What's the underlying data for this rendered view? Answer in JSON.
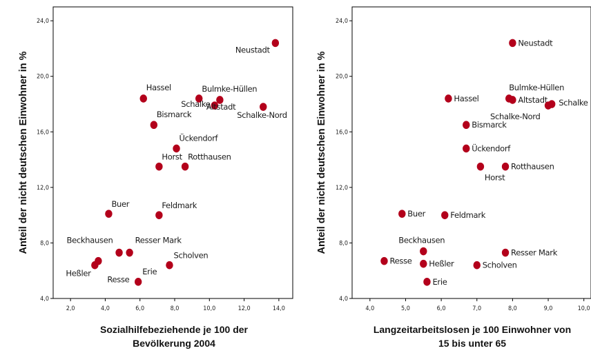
{
  "chart_data": [
    {
      "type": "scatter",
      "xlabel": "Sozialhilfebeziehende je 100 der Bevölkerung 2004",
      "xlabel_lines": [
        "Sozialhilfebeziehende je 100 der",
        "Bevölkerung 2004"
      ],
      "ylabel": "Anteil der nicht deutschen Einwohner in %",
      "xlim": [
        1.0,
        14.8
      ],
      "ylim": [
        4.0,
        25.0
      ],
      "x_ticks": [
        "2,0",
        "4,0",
        "6,0",
        "8,0",
        "10,0",
        "12,0",
        "14,0"
      ],
      "y_ticks": [
        "4,0",
        "8,0",
        "12,0",
        "16,0",
        "20,0",
        "24,0"
      ],
      "grid": false,
      "points": [
        {
          "label": "Neustadt",
          "x": 13.8,
          "y": 22.4
        },
        {
          "label": "Hassel",
          "x": 6.2,
          "y": 18.4
        },
        {
          "label": "Bulmke-Hüllen",
          "x": 10.6,
          "y": 18.3
        },
        {
          "label": "Schalke",
          "x": 9.4,
          "y": 18.4
        },
        {
          "label": "Altstadt",
          "x": 10.3,
          "y": 17.9
        },
        {
          "label": "Schalke-Nord",
          "x": 13.1,
          "y": 17.8
        },
        {
          "label": "Bismarck",
          "x": 6.8,
          "y": 16.5
        },
        {
          "label": "Ückendorf",
          "x": 8.1,
          "y": 14.8
        },
        {
          "label": "Horst",
          "x": 7.1,
          "y": 13.5
        },
        {
          "label": "Rotthausen",
          "x": 8.6,
          "y": 13.5
        },
        {
          "label": "Buer",
          "x": 4.2,
          "y": 10.1
        },
        {
          "label": "Feldmark",
          "x": 7.1,
          "y": 10.0
        },
        {
          "label": "Beckhausen",
          "x": 4.8,
          "y": 7.3
        },
        {
          "label": "Resser Mark",
          "x": 5.4,
          "y": 7.3
        },
        {
          "label": "Heßler",
          "x": 3.6,
          "y": 6.7
        },
        {
          "label": "Resse",
          "x": 3.4,
          "y": 6.4
        },
        {
          "label": "Scholven",
          "x": 7.7,
          "y": 6.4
        },
        {
          "label": "Erie",
          "x": 5.9,
          "y": 5.2
        }
      ]
    },
    {
      "type": "scatter",
      "xlabel": "Langzeitarbeitslosen je 100 Einwohner von 15 bis unter 65",
      "xlabel_lines": [
        "Langzeitarbeitslosen je 100 Einwohner von",
        "15 bis unter 65"
      ],
      "ylabel": "Anteil der nicht deutschen Einwohner in %",
      "xlim": [
        3.5,
        10.2
      ],
      "ylim": [
        4.0,
        25.0
      ],
      "x_ticks": [
        "4,0",
        "5,0",
        "6,0",
        "7,0",
        "8,0",
        "9,0",
        "10,0"
      ],
      "y_ticks": [
        "4,0",
        "8,0",
        "12,0",
        "16,0",
        "20,0",
        "24,0"
      ],
      "grid": false,
      "points": [
        {
          "label": "Neustadt",
          "x": 8.0,
          "y": 22.4
        },
        {
          "label": "Hassel",
          "x": 6.2,
          "y": 18.4
        },
        {
          "label": "Bulmke-Hüllen",
          "x": 7.9,
          "y": 18.4
        },
        {
          "label": "Altstadt",
          "x": 8.0,
          "y": 18.3
        },
        {
          "label": "Schalke",
          "x": 9.1,
          "y": 18.0
        },
        {
          "label": "Schalke-Nord",
          "x": 9.0,
          "y": 17.9
        },
        {
          "label": "Bismarck",
          "x": 6.7,
          "y": 16.5
        },
        {
          "label": "Ückendorf",
          "x": 6.7,
          "y": 14.8
        },
        {
          "label": "Horst",
          "x": 7.1,
          "y": 13.5
        },
        {
          "label": "Rotthausen",
          "x": 7.8,
          "y": 13.5
        },
        {
          "label": "Buer",
          "x": 4.9,
          "y": 10.1
        },
        {
          "label": "Feldmark",
          "x": 6.1,
          "y": 10.0
        },
        {
          "label": "Beckhausen",
          "x": 5.5,
          "y": 7.4
        },
        {
          "label": "Resser Mark",
          "x": 7.8,
          "y": 7.3
        },
        {
          "label": "Resse",
          "x": 4.4,
          "y": 6.7
        },
        {
          "label": "Heßler",
          "x": 5.5,
          "y": 6.5
        },
        {
          "label": "Scholven",
          "x": 7.0,
          "y": 6.4
        },
        {
          "label": "Erie",
          "x": 5.6,
          "y": 5.2
        }
      ]
    }
  ]
}
